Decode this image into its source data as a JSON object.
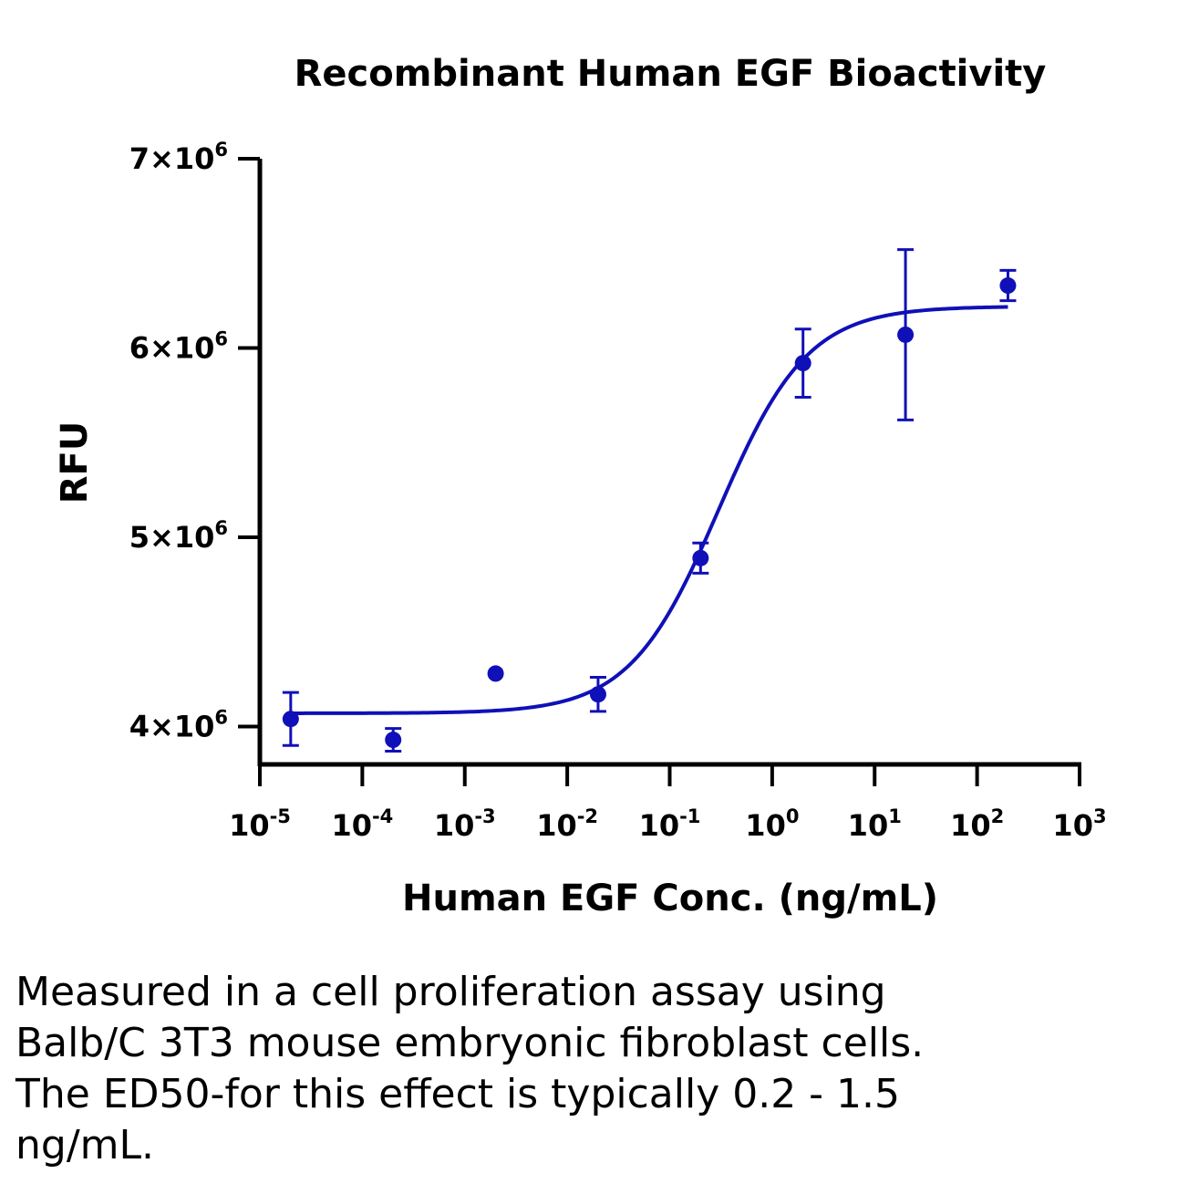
{
  "chart_data": {
    "type": "scatter",
    "title": "Recombinant Human EGF Bioactivity",
    "xlabel": "Human EGF Conc. (ng/mL)",
    "ylabel": "RFU",
    "x_scale": "log",
    "xlim": [
      1e-05,
      1000
    ],
    "ylim": [
      3800000,
      7000000
    ],
    "grid": false,
    "legend": "none",
    "x_ticks": [
      {
        "base": "10",
        "exp": "-5",
        "value": 1e-05
      },
      {
        "base": "10",
        "exp": "-4",
        "value": 0.0001
      },
      {
        "base": "10",
        "exp": "-3",
        "value": 0.001
      },
      {
        "base": "10",
        "exp": "-2",
        "value": 0.01
      },
      {
        "base": "10",
        "exp": "-1",
        "value": 0.1
      },
      {
        "base": "10",
        "exp": "0",
        "value": 1
      },
      {
        "base": "10",
        "exp": "1",
        "value": 10
      },
      {
        "base": "10",
        "exp": "2",
        "value": 100
      },
      {
        "base": "10",
        "exp": "3",
        "value": 1000
      }
    ],
    "y_ticks": [
      {
        "mantissa": "4",
        "base": "10",
        "exp": "6",
        "value": 4000000
      },
      {
        "mantissa": "5",
        "base": "10",
        "exp": "6",
        "value": 5000000
      },
      {
        "mantissa": "6",
        "base": "10",
        "exp": "6",
        "value": 6000000
      },
      {
        "mantissa": "7",
        "base": "10",
        "exp": "6",
        "value": 7000000
      }
    ],
    "series": [
      {
        "color": "#1010b8",
        "points": [
          {
            "x": 2e-05,
            "y": 4040000,
            "err": 140000
          },
          {
            "x": 0.0002,
            "y": 3930000,
            "err": 60000
          },
          {
            "x": 0.002,
            "y": 4280000,
            "err": 0
          },
          {
            "x": 0.02,
            "y": 4170000,
            "err": 90000
          },
          {
            "x": 0.2,
            "y": 4890000,
            "err": 80000
          },
          {
            "x": 2,
            "y": 5920000,
            "err": 180000
          },
          {
            "x": 20,
            "y": 6070000,
            "err": 450000
          },
          {
            "x": 200,
            "y": 6330000,
            "err": 80000
          }
        ],
        "fit": {
          "model": "4PL",
          "bottom": 4070000,
          "top": 6220000,
          "ec50": 0.3,
          "hill": 1.0,
          "x_range": [
            2e-05,
            200
          ]
        }
      }
    ]
  },
  "caption": {
    "lines": [
      "Measured in a cell proliferation assay using",
      "Balb/C 3T3 mouse embryonic fibroblast cells.",
      "The ED50-for this effect is typically 0.2 - 1.5",
      "ng/mL."
    ]
  }
}
